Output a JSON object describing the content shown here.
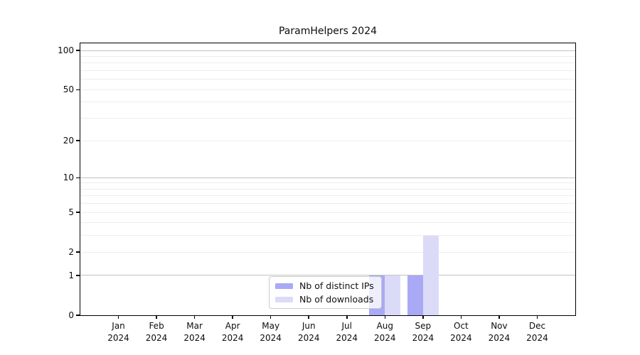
{
  "page": {
    "background": "#ffffff",
    "frame_color": "#000000",
    "grid_major_color": "#c2c2c2",
    "grid_minor_color": "#ededed"
  },
  "chart_data": {
    "type": "bar",
    "title": "ParamHelpers 2024",
    "xlabel": "",
    "ylabel": "",
    "categories": [
      "Jan 2024",
      "Feb 2024",
      "Mar 2024",
      "Apr 2024",
      "May 2024",
      "Jun 2024",
      "Jul 2024",
      "Aug 2024",
      "Sep 2024",
      "Oct 2024",
      "Nov 2024",
      "Dec 2024"
    ],
    "series": [
      {
        "name": "Nb of distinct IPs",
        "color": "#a9a9f6",
        "values": [
          0,
          0,
          0,
          0,
          0,
          0,
          0,
          1,
          1,
          0,
          0,
          0
        ]
      },
      {
        "name": "Nb of downloads",
        "color": "#dbdbf8",
        "values": [
          0,
          0,
          0,
          0,
          0,
          0,
          0,
          1,
          3,
          0,
          0,
          0
        ]
      }
    ],
    "yticks": [
      0,
      1,
      2,
      5,
      10,
      20,
      50,
      100
    ],
    "ylim": [
      0,
      113.5
    ],
    "scale": "log(1+y)",
    "grid": {
      "major": [
        1,
        10,
        100
      ],
      "minor": [
        2,
        3,
        4,
        5,
        6,
        7,
        8,
        9,
        20,
        30,
        40,
        50,
        60,
        70,
        80,
        90
      ]
    },
    "legend": {
      "position": "inside-bottom-center",
      "entries": [
        "Nb of distinct IPs",
        "Nb of downloads"
      ]
    }
  }
}
